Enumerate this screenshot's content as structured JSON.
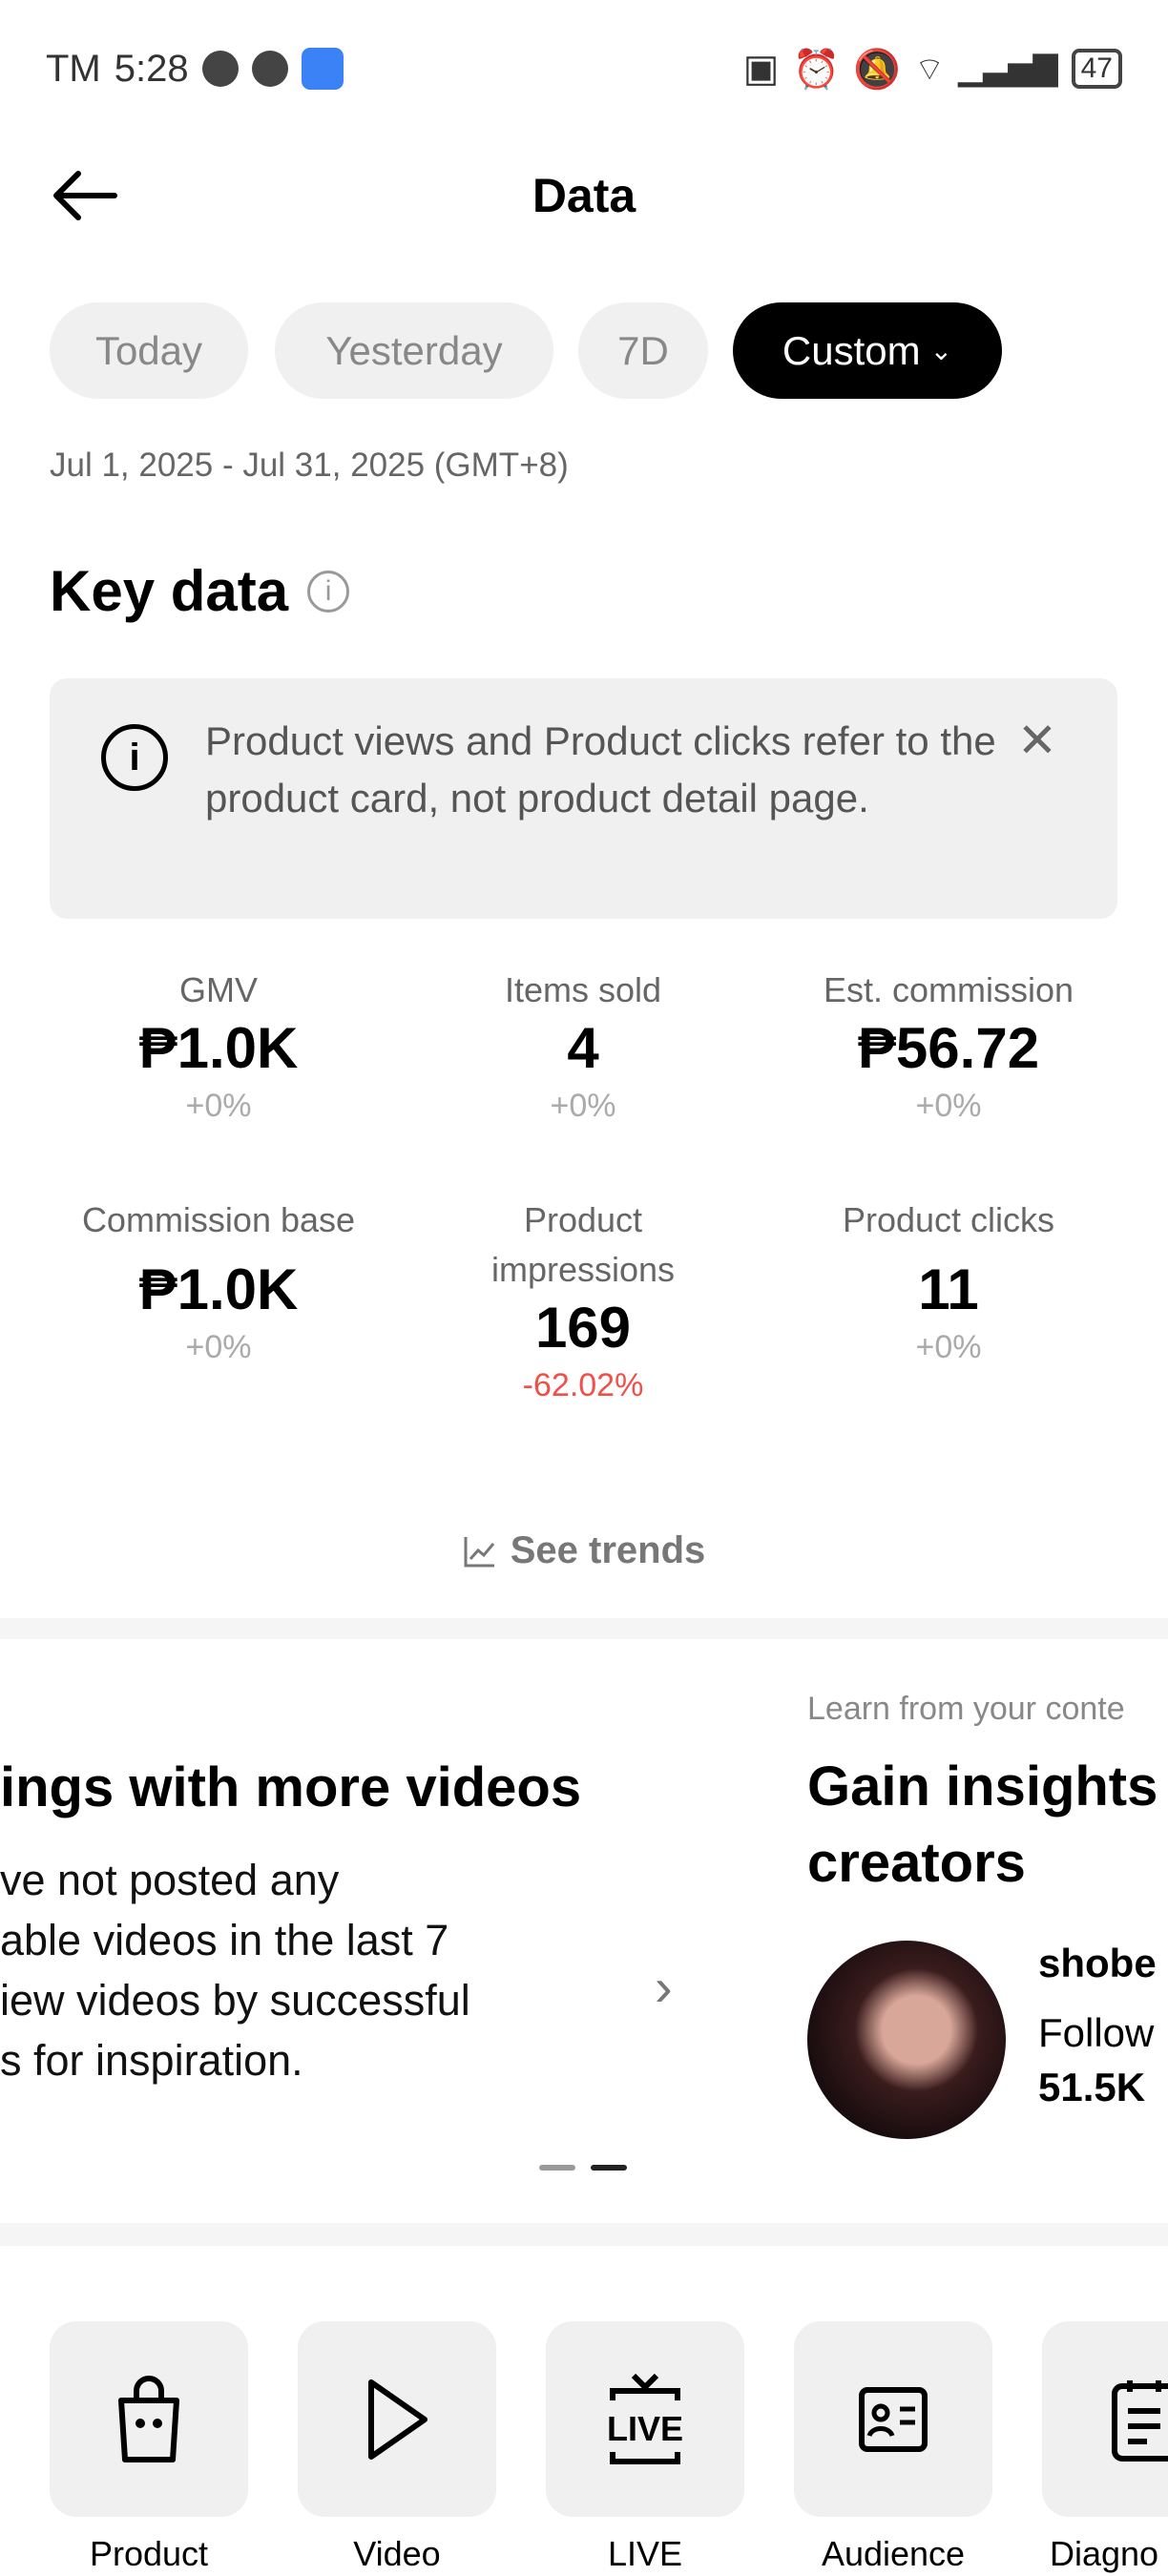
{
  "status_bar": {
    "carrier": "TM",
    "time": "5:28",
    "battery": "47"
  },
  "header": {
    "title": "Data"
  },
  "filters": [
    {
      "label": "Today",
      "active": false
    },
    {
      "label": "Yesterday",
      "active": false
    },
    {
      "label": "7D",
      "active": false
    },
    {
      "label": "Custom",
      "active": true
    }
  ],
  "date_range": "Jul 1, 2025 - Jul 31, 2025 (GMT+8)",
  "key_data": {
    "title": "Key data",
    "banner": "Product views and Product clicks refer to the product card, not product detail page.",
    "metrics": [
      {
        "label": "GMV",
        "value": "₱1.0K",
        "change": "+0%"
      },
      {
        "label": "Items sold",
        "value": "4",
        "change": "+0%"
      },
      {
        "label": "Est. commission",
        "value": "₱56.72",
        "change": "+0%"
      },
      {
        "label": "Commission base",
        "value": "₱1.0K",
        "change": "+0%"
      },
      {
        "label": "Product impressions",
        "value": "169",
        "change": "-62.02%"
      },
      {
        "label": "Product clicks",
        "value": "11",
        "change": "+0%"
      }
    ],
    "see_trends": "See trends"
  },
  "colors": {
    "negative": "#f0504a",
    "accent": "#000000"
  },
  "carousel": {
    "card1": {
      "title": "ings with more videos",
      "lines": [
        "ve not posted any",
        "able videos in the last 7",
        "iew videos by successful",
        "s for inspiration."
      ]
    },
    "card2": {
      "eyebrow": "Learn from your conte",
      "title_line1": "Gain insights",
      "title_line2": "creators",
      "creator_name": "shobe",
      "followers_label": "Follow",
      "followers": "51.5K"
    },
    "page": 2,
    "pages": 2
  },
  "tools": [
    {
      "label": "Product",
      "icon": "shopping-bag-icon"
    },
    {
      "label": "Video",
      "icon": "play-icon"
    },
    {
      "label": "LIVE",
      "icon": "live-tv-icon"
    },
    {
      "label": "Audience",
      "icon": "id-card-icon"
    },
    {
      "label": "Diagno",
      "icon": "clipboard-icon"
    }
  ]
}
